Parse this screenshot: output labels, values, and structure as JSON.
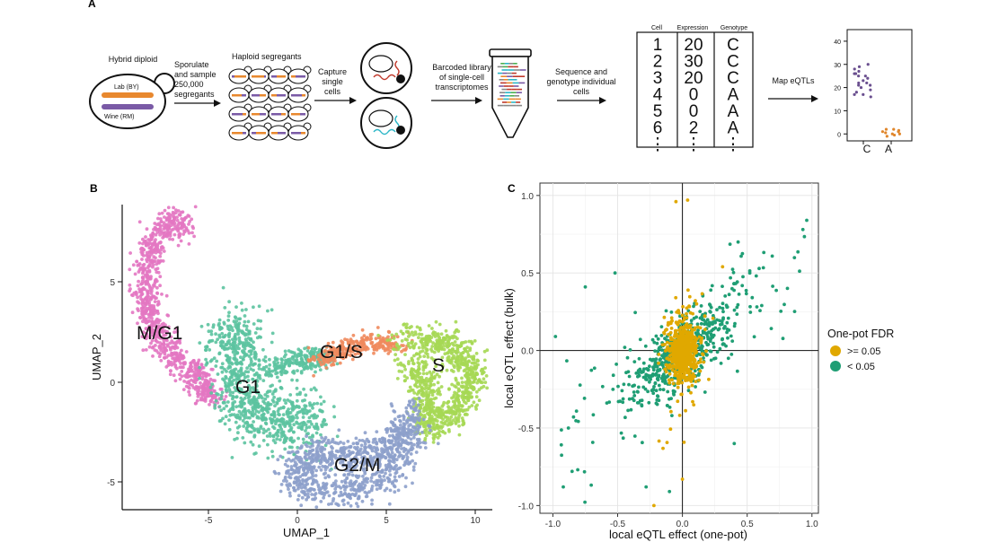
{
  "panel_a": {
    "letter": "A",
    "hybrid_label": "Hybrid diploid",
    "lab_label": "Lab (BY)",
    "wine_label": "Wine (RM)",
    "step1": [
      "Sporulate",
      "and sample",
      "250,000",
      "segregants"
    ],
    "haploid_label": "Haploid segregants",
    "step2": [
      "Capture",
      "single",
      "cells"
    ],
    "step3": [
      "Barcoded library",
      "of single-cell",
      "transcriptomes"
    ],
    "step4": [
      "Sequence and",
      "genotype individual",
      "cells"
    ],
    "table": {
      "headers": [
        "Cell",
        "Expression",
        "Genotype"
      ],
      "cells": [
        "1",
        "2",
        "3",
        "4",
        "5",
        "6",
        "⋮"
      ],
      "expression": [
        "20",
        "30",
        "20",
        "0",
        "0",
        "2",
        "⋮"
      ],
      "genotype": [
        "C",
        "C",
        "C",
        "A",
        "A",
        "A",
        "⋮"
      ]
    },
    "step5": "Map eQTLs",
    "colors": {
      "c_allele": "#6a4f8f",
      "a_allele": "#e0862b",
      "lab_chrom": "#e8882e",
      "wine_chrom": "#7a5aa6"
    },
    "mini_chart": {
      "yticks": [
        "40",
        "30",
        "20",
        "10",
        "0"
      ],
      "ylim": [
        -3,
        45
      ],
      "categories": [
        "C",
        "A"
      ],
      "C_values": [
        30,
        29,
        28,
        27,
        26,
        26,
        25,
        25,
        24,
        23,
        22,
        22,
        21,
        21,
        20,
        19,
        18,
        17,
        17,
        16
      ],
      "A_values": [
        2,
        1.5,
        1,
        1,
        0.5,
        0,
        0,
        -0.5,
        -1,
        2
      ]
    }
  },
  "panel_b": {
    "letter": "B",
    "xlabel": "UMAP_1",
    "ylabel": "UMAP_2",
    "xticks": [
      "-5",
      "0",
      "5",
      "10"
    ],
    "yticks": [
      "5",
      "0",
      "-5"
    ],
    "clusters": [
      {
        "name": "M/G1",
        "color": "#e377c2"
      },
      {
        "name": "G1",
        "color": "#5cc3a0"
      },
      {
        "name": "G1/S",
        "color": "#f08a5d"
      },
      {
        "name": "S",
        "color": "#a6d854"
      },
      {
        "name": "G2/M",
        "color": "#8da0cb"
      }
    ]
  },
  "panel_c": {
    "letter": "C",
    "chart_data": {
      "type": "scatter",
      "xlabel": "local eQTL effect (one-pot)",
      "ylabel": "local eQTL effect (bulk)",
      "xlim": [
        -1.1,
        1.05
      ],
      "ylim": [
        -1.05,
        1.08
      ],
      "xticks": [
        "-1.0",
        "-0.5",
        "0.0",
        "0.5",
        "1.0"
      ],
      "yticks": [
        "1.0",
        "0.5",
        "0.0",
        "-0.5",
        "-1.0"
      ],
      "grid": true,
      "legend_position": "right",
      "legend_title": "One-pot FDR",
      "series": [
        {
          "name": ">= 0.05",
          "color": "#e0a800"
        },
        {
          "name": "< 0.05",
          "color": "#1f9e74"
        }
      ],
      "notable_points": [
        [
          0.96,
          0.84
        ],
        [
          0.93,
          0.78
        ],
        [
          0.43,
          0.7
        ],
        [
          0.31,
          0.54
        ],
        [
          0.52,
          0.5
        ],
        [
          -0.05,
          0.96
        ],
        [
          0.04,
          0.97
        ],
        [
          -0.52,
          0.5
        ],
        [
          -0.75,
          0.41
        ],
        [
          -0.98,
          0.09
        ],
        [
          -0.88,
          -0.5
        ],
        [
          -0.92,
          -0.88
        ],
        [
          -0.28,
          -0.88
        ],
        [
          -0.22,
          -1.0
        ],
        [
          -0.1,
          -0.91
        ],
        [
          0.0,
          -0.83
        ],
        [
          0.4,
          -0.6
        ]
      ]
    }
  }
}
